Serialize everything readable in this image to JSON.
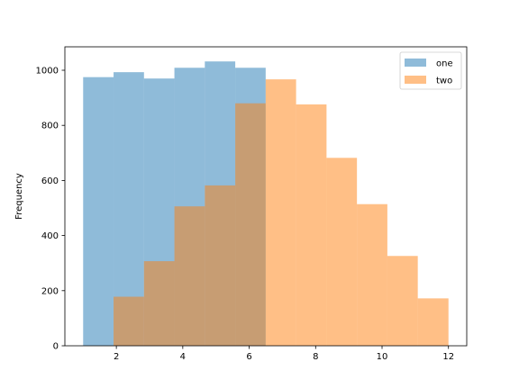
{
  "chart_data": {
    "type": "histogram",
    "title": "",
    "xlabel": "",
    "ylabel": "Frequency",
    "xlim": [
      0.45,
      12.55
    ],
    "ylim": [
      0,
      1085
    ],
    "xticks": [
      2,
      4,
      6,
      8,
      10,
      12
    ],
    "yticks": [
      0,
      200,
      400,
      600,
      800,
      1000
    ],
    "legend_position": "top-right",
    "series": [
      {
        "name": "one",
        "color": "#1f77b4",
        "alpha": 0.5,
        "bin_edges": [
          1.0,
          1.916,
          2.832,
          3.748,
          4.664,
          5.58,
          6.496
        ],
        "values": [
          975,
          993,
          970,
          1009,
          1032,
          1009
        ]
      },
      {
        "name": "two",
        "color": "#ff7f0e",
        "alpha": 0.5,
        "bin_edges": [
          1.916,
          2.832,
          3.748,
          4.664,
          5.58,
          6.496,
          7.412,
          8.328,
          9.244,
          10.16,
          11.076,
          12.0
        ],
        "values": [
          178,
          307,
          506,
          582,
          880,
          967,
          876,
          682,
          514,
          326,
          172
        ]
      }
    ]
  }
}
